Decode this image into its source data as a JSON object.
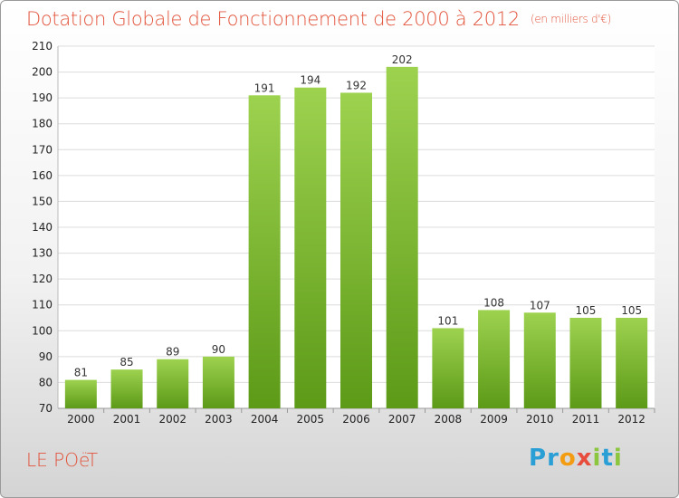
{
  "title": "Dotation Globale de Fonctionnement de 2000 à 2012",
  "unit": "(en milliers d'€)",
  "place": "LE POëT",
  "brand": {
    "letters": [
      "P",
      "r",
      "o",
      "x",
      "i",
      "t",
      "i"
    ],
    "colors": [
      "#2a9fd6",
      "#2a9fd6",
      "#f39c12",
      "#e74c3c",
      "#8cc63f",
      "#2a9fd6",
      "#8cc63f"
    ]
  },
  "chart_data": {
    "type": "bar",
    "title": "Dotation Globale de Fonctionnement de 2000 à 2012",
    "subtitle": "(en milliers d'€)",
    "xlabel": "",
    "ylabel": "",
    "categories": [
      "2000",
      "2001",
      "2002",
      "2003",
      "2004",
      "2005",
      "2006",
      "2007",
      "2008",
      "2009",
      "2010",
      "2011",
      "2012"
    ],
    "values": [
      81,
      85,
      89,
      90,
      191,
      194,
      192,
      202,
      101,
      108,
      107,
      105,
      105
    ],
    "ylim": [
      70,
      210
    ],
    "yticks": [
      70,
      80,
      90,
      100,
      110,
      120,
      130,
      140,
      150,
      160,
      170,
      180,
      190,
      200,
      210
    ],
    "grid": true,
    "bar_color": "#8cc63f"
  }
}
